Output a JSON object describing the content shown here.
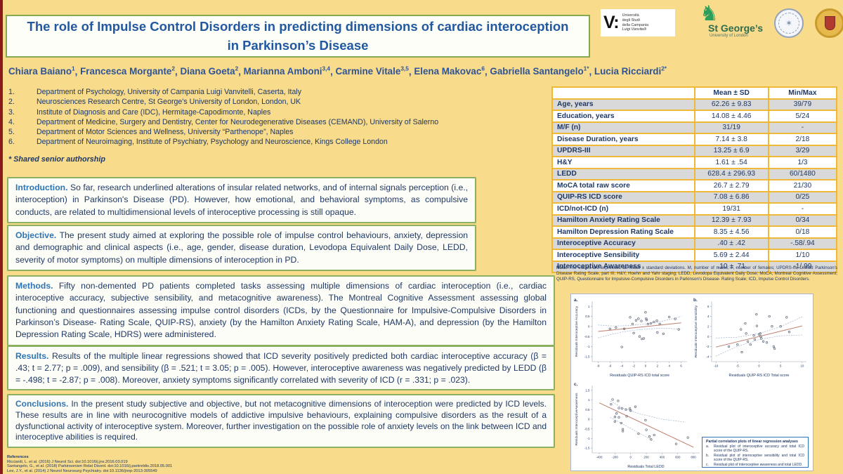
{
  "header": {
    "title_line1": "The role of Impulse Control Disorders in predicting dimensions of cardiac interoception",
    "title_line2": "in Parkinson’s Disease",
    "shared_note": "* Shared senior authorship"
  },
  "authors": [
    {
      "name": "Chiara Baiano",
      "sup": "1"
    },
    {
      "name": "Francesca Morgante",
      "sup": "2"
    },
    {
      "name": "Diana Goeta",
      "sup": "2"
    },
    {
      "name": "Marianna Amboni",
      "sup": "3,4"
    },
    {
      "name": "Carmine Vitale",
      "sup": "3,5"
    },
    {
      "name": "Elena Makovac",
      "sup": "6"
    },
    {
      "name": "Gabriella Santangelo",
      "sup": "1*"
    },
    {
      "name": "Lucia Ricciardi",
      "sup": "2*"
    }
  ],
  "affiliations": [
    "Department of Psychology, University of Campania Luigi Vanvitelli, Caserta, Italy",
    "Neurosciences Research Centre, St George’s University of London, London, UK",
    "Institute of Diagnosis and Care (IDC), Hermitage-Capodimonte, Naples",
    "Department of Medicine, Surgery and Dentistry, Center for Neurodegenerative Diseases (CEMAND), University of Salerno",
    "Department of Motor Sciences and Wellness, University “Parthenope”, Naples",
    "Department of Neuroimaging, Institute of Psychiatry, Psychology and Neuroscience, Kings College London"
  ],
  "logos": {
    "vanvitelli": {
      "mark": "V:",
      "lines": [
        "Università",
        "degli Studi",
        "della Campania"
      ],
      "line_italic": "Luigi Vanvitelli"
    },
    "stgeorges": {
      "knight": "♞",
      "name": "St George’s",
      "sub": "University of London"
    },
    "seal_blue_glyph": "✶"
  },
  "sections": [
    {
      "label": "Introduction.",
      "text": "So far, research underlined alterations of insular related networks, and of internal signals perception (i.e., interoception) in Parkinson's Disease (PD). However, how emotional, and behavioral symptoms, as compulsive conducts, are related to multidimensional levels of interoceptive processing is still opaque."
    },
    {
      "label": "Objective.",
      "text": "The present study aimed at exploring the possible role of impulse control behaviours, anxiety, depression and demographic and clinical aspects (i.e., age, gender, disease duration, Levodopa Equivalent Daily Dose, LEDD, severity of motor symptoms) on multiple dimensions of interoception in PD."
    },
    {
      "label": "Methods.",
      "text": "Fifty non-demented PD patients completed tasks assessing multiple dimensions of cardiac interoception (i.e., cardiac interoceptive accuracy, subjective sensibility, and metacognitive awareness). The Montreal Cognitive Assessment assessing global functioning and questionnaires assessing impulse control disorders (ICDs, by the Questionnaire for Impulsive-Compulsive Disorders in Parkinson’s Disease- Rating Scale, QUIP-RS), anxiety (by the Hamilton Anxiety Rating Scale, HAM-A), and depression (by the Hamilton Depression Rating Scale, HDRS) were administered."
    },
    {
      "label": "Results.",
      "text": "Results of the multiple linear regressions showed that ICD severity positively predicted both cardiac interoceptive accuracy (β = .43; t = 2.77; p = .009), and sensibility (β = .521; t = 3.05; p = .005). However, interoceptive awareness was negatively predicted by LEDD (β = -.498; t = -2.87; p = .008). Moreover, anxiety symptoms significantly correlated with severity of ICD (r = .331; p = .023)."
    },
    {
      "label": "Conclusions.",
      "text": "In the present study subjective and objective, but not metacognitive dimensions of interoception were predicted by ICD levels. These results are in line with neurocognitive models of addictive impulsive behaviours, explaining compulsive disorders as the result of a dysfunctional activity of interoceptive system. Moreover, further investigation on the possible role of anxiety levels on the link between ICD and interoceptive abilities is required."
    }
  ],
  "references": {
    "heading": "References",
    "items": [
      "Ricciardi, L. et al. (2016) J Neurol Sci. doi:10.1016/j.jns.2016.03.019",
      "Santangelo, G., et al. (2018) Parkinsonism Relat Disord. doi:10.1016/j.parkreldis.2018.05.001",
      "Lee, J.Y., et al. (2014) J Neurol Neurosurg Psychiatry. doi:10.1136/jnnp-2013-305549"
    ]
  },
  "table": {
    "headers": [
      "",
      "Mean ± SD",
      "Min/Max"
    ],
    "rows": [
      [
        "Age, years",
        "62.26 ± 9.83",
        "39/79"
      ],
      [
        "Education, years",
        "14.08 ± 4.46",
        "5/24"
      ],
      [
        "M/F (n)",
        "31/19",
        "-"
      ],
      [
        "Disease Duration, years",
        "7.14 ± 3.8",
        "2/18"
      ],
      [
        "UPDRS-III",
        "13.25 ± 6.9",
        "3/29"
      ],
      [
        "H&Y",
        "1.61 ± .54",
        "1/3"
      ],
      [
        "LEDD",
        "628.4 ± 296.93",
        "60/1480"
      ],
      [
        "MoCA total raw score",
        "26.7 ± 2.79",
        "21/30"
      ],
      [
        "QUIP-RS ICD score",
        "7.08 ± 6.86",
        "0/25"
      ],
      [
        "ICD/not-ICD (n)",
        "19/31",
        "-"
      ],
      [
        "Hamilton Anxiety Rating Scale",
        "12.39 ± 7.93",
        "0/34"
      ],
      [
        "Hamilton Depression Rating Scale",
        "8.35 ± 4.56",
        "0/18"
      ],
      [
        "Interoceptive Accuracy",
        ".40 ± .42",
        "-.58/.94"
      ],
      [
        "Interoceptive Sensibility",
        "5.69 ± 2.44",
        "1/10"
      ],
      [
        "Interoceptive Awareness",
        ".10 ± .71",
        "-1/.99"
      ]
    ],
    "note_label": "Note.",
    "note": "The values are expressed as mean ± standard deviations. M, number of males; F, number of females; UPDRS-III, Unified Parkinson's Disease Rating Scale, part III; H&Y, Hoehn and Yahr staging; LEDD, Levodopa Equivalent Daily Dose; MoCA, Montreal Cognitive Assessment; QUIP-RS, Questionnaire for Impulsive-Compulsive Disorders in Parkinson's Disease- Rating Scale; ICD, Impulse Control Disorders."
  },
  "chart_data": [
    {
      "type": "scatter",
      "label": "a.",
      "xlabel": "Residuals QUIP-RS ICD total score",
      "ylabel": "Residuals Interoceptive Accuracy",
      "xlim": [
        -9,
        7
      ],
      "ylim": [
        -1.75,
        1.25
      ],
      "xticks": [
        -8,
        -6,
        -4,
        -2,
        0,
        2,
        4,
        6
      ],
      "yticks": [
        1,
        0.5,
        0,
        -0.5,
        -1,
        -1.5
      ],
      "points": [
        [
          -6,
          -0.12
        ],
        [
          -5,
          -0.05
        ],
        [
          -4,
          -1.02
        ],
        [
          -3.6,
          -0.12
        ],
        [
          -2.6,
          0.45
        ],
        [
          -2.2,
          0.12
        ],
        [
          -2,
          -0.33
        ],
        [
          -1.6,
          0.3
        ],
        [
          -1.2,
          0.38
        ],
        [
          -1,
          -0.5
        ],
        [
          -0.7,
          0.27
        ],
        [
          -0.6,
          -0.62
        ],
        [
          -0.3,
          -0.6
        ],
        [
          0,
          0.7
        ],
        [
          0.1,
          0.38
        ],
        [
          0.2,
          0.32
        ],
        [
          0.4,
          0.12
        ],
        [
          0.9,
          0.15
        ],
        [
          1.4,
          0.22
        ],
        [
          1.9,
          0.28
        ],
        [
          2,
          -0.3
        ],
        [
          2.4,
          0.12
        ],
        [
          3,
          -0.37
        ],
        [
          4,
          0.47
        ],
        [
          5,
          0.37
        ],
        [
          5.6,
          -0.15
        ]
      ],
      "regression": [
        [
          -8,
          -0.25
        ],
        [
          6,
          0.18
        ]
      ],
      "band_upper": [
        [
          -8,
          0.07
        ],
        [
          -6,
          0.03
        ],
        [
          -4,
          0.03
        ],
        [
          -2,
          0.06
        ],
        [
          0,
          0.12
        ],
        [
          2,
          0.21
        ],
        [
          4,
          0.34
        ],
        [
          6,
          0.5
        ]
      ],
      "band_lower": [
        [
          -8,
          -0.57
        ],
        [
          -6,
          -0.41
        ],
        [
          -4,
          -0.28
        ],
        [
          -2,
          -0.19
        ],
        [
          0,
          -0.13
        ],
        [
          2,
          -0.1
        ],
        [
          4,
          -0.1
        ],
        [
          6,
          -0.14
        ]
      ]
    },
    {
      "type": "scatter",
      "label": "b.",
      "xlabel": "Residuals QUIP-RS ICD Total score",
      "ylabel": "Residuals Interoceptive Sensibility",
      "xlim": [
        -11,
        11
      ],
      "ylim": [
        -5,
        7
      ],
      "xticks": [
        -10,
        -5,
        0,
        5,
        10
      ],
      "yticks": [
        6,
        4,
        2,
        0,
        -2,
        -4
      ],
      "points": [
        [
          -7,
          -2
        ],
        [
          -5,
          -1.6
        ],
        [
          -4.2,
          1.4
        ],
        [
          -4,
          -3.1
        ],
        [
          -3.2,
          2.6
        ],
        [
          -3,
          0.6
        ],
        [
          -2.6,
          -1
        ],
        [
          -2,
          -1.6
        ],
        [
          -1.2,
          0.2
        ],
        [
          -1,
          -0.6
        ],
        [
          -0.6,
          4.4
        ],
        [
          -0.5,
          2.1
        ],
        [
          0,
          0.4
        ],
        [
          0.3,
          0.6
        ],
        [
          0.4,
          0
        ],
        [
          0.5,
          -0.4
        ],
        [
          1,
          -1
        ],
        [
          1.8,
          -1.2
        ],
        [
          2.4,
          4
        ],
        [
          3,
          2
        ],
        [
          3.4,
          -2
        ],
        [
          3.6,
          -2.4
        ],
        [
          5,
          2
        ],
        [
          6.4,
          3.8
        ],
        [
          7,
          0.9
        ]
      ],
      "regression": [
        [
          -10,
          -2.1
        ],
        [
          10,
          2.1
        ]
      ],
      "band_upper": [
        [
          -10,
          -0.3
        ],
        [
          -5,
          -0.15
        ],
        [
          0,
          0.6
        ],
        [
          5,
          1.95
        ],
        [
          10,
          3.9
        ]
      ],
      "band_lower": [
        [
          -10,
          -3.9
        ],
        [
          -5,
          -1.95
        ],
        [
          0,
          -0.6
        ],
        [
          5,
          0.15
        ],
        [
          10,
          0.3
        ]
      ]
    },
    {
      "type": "scatter",
      "label": "c.",
      "xlabel": "Residuals Total LEDD",
      "ylabel": "Residuals InteroceptiveAwareness",
      "xlim": [
        -490,
        880
      ],
      "ylim": [
        -1.75,
        1.75
      ],
      "xticks": [
        -400,
        -200,
        0,
        200,
        400,
        600,
        800
      ],
      "yticks": [
        1.5,
        1,
        0.5,
        0,
        -0.5,
        -1,
        -1.5
      ],
      "points": [
        [
          -250,
          0.78
        ],
        [
          -230,
          1.02
        ],
        [
          -200,
          0.12
        ],
        [
          -200,
          -0.12
        ],
        [
          -180,
          0.3
        ],
        [
          -160,
          0.95
        ],
        [
          -150,
          0.58
        ],
        [
          -150,
          0.1
        ],
        [
          -120,
          -0.2
        ],
        [
          -110,
          0.55
        ],
        [
          -100,
          -0.52
        ],
        [
          -100,
          -0.62
        ],
        [
          -60,
          0.5
        ],
        [
          -50,
          0.15
        ],
        [
          -10,
          0.55
        ],
        [
          0,
          0.45
        ],
        [
          60,
          0.65
        ],
        [
          100,
          -0.75
        ],
        [
          190,
          -0.05
        ],
        [
          200,
          -0.55
        ],
        [
          240,
          -0.9
        ],
        [
          260,
          -1.05
        ],
        [
          300,
          -0.82
        ],
        [
          580,
          -1.28
        ],
        [
          730,
          -0.95
        ]
      ],
      "regression": [
        [
          -400,
          0.85
        ],
        [
          800,
          -1.45
        ]
      ],
      "band_upper": [
        [
          -260,
          0.95
        ],
        [
          -100,
          0.58
        ],
        [
          100,
          0.3
        ],
        [
          400,
          0
        ],
        [
          700,
          -0.15
        ]
      ],
      "band_lower": [
        [
          -260,
          0.1
        ],
        [
          -100,
          -0.25
        ],
        [
          100,
          -0.7
        ],
        [
          300,
          -1.15
        ]
      ]
    }
  ],
  "figure_legend": {
    "title": "Partial correlation plots of linear regression analyses",
    "items": [
      {
        "key": "a.",
        "text": "Residual plot of interoceptive accuracy and total ICD score of the QUIP-RS."
      },
      {
        "key": "b.",
        "text": "Residual plot of interoceptive sensibility and total ICD score of the QUIP-RS."
      },
      {
        "key": "c.",
        "text": "Residual plot of interoceptive awareness and total LEDD."
      }
    ]
  },
  "colors": {
    "background": "#F8DB8B",
    "title_blue": "#2158A0",
    "section_label_blue": "#2E75B6",
    "navy_text": "#1F3864",
    "box_border_green": "#8CB05F",
    "table_border_gold": "#EFB937",
    "row_gray": "#D9D9D9",
    "left_strip_red": "#8B1A1A",
    "regression_line": "#BE7E6E",
    "confidence_band": "#8FA7C4",
    "scatter_point": "#5B6475",
    "stgeorges_green": "#2E9E5B"
  }
}
